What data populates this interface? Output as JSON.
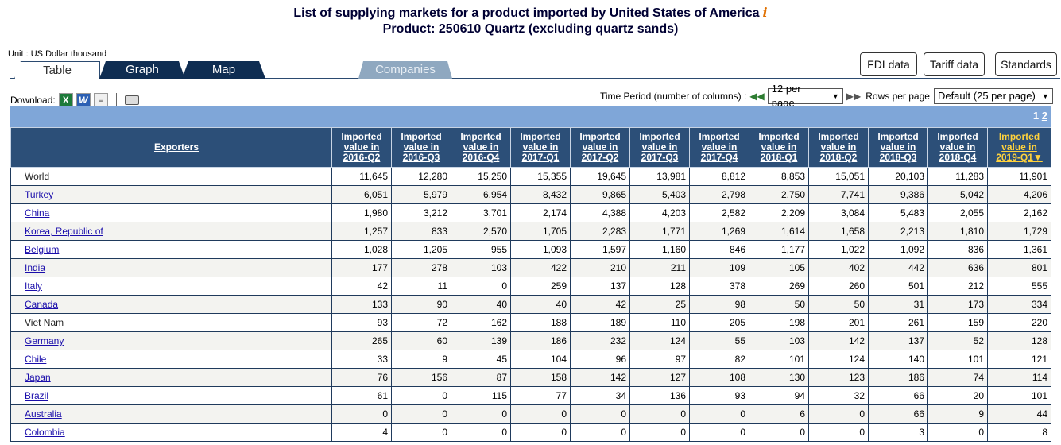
{
  "title": {
    "line1": "List of supplying markets for a product imported by United States of America",
    "info_icon": "i",
    "line2": "Product: 250610 Quartz (excluding quartz sands)"
  },
  "unit": "Unit : US Dollar thousand",
  "tabs": {
    "table": "Table",
    "graph": "Graph",
    "map": "Map",
    "companies": "Companies"
  },
  "top_buttons": {
    "fdi": "FDI data",
    "tariff": "Tariff data",
    "standards": "Standards"
  },
  "download": {
    "label": "Download:",
    "icons": [
      "excel-icon",
      "word-icon",
      "text-file-icon",
      "print-icon"
    ]
  },
  "controls": {
    "time_period_label": "Time Period (number of columns) :",
    "time_period_value": "12 per page",
    "rows_label": "Rows per page",
    "rows_value": "Default (25 per page)"
  },
  "pagination": {
    "current": "1",
    "next": "2"
  },
  "table": {
    "exporters_header": "Exporters",
    "columns": [
      {
        "l1": "Imported",
        "l2": "value in",
        "l3": "2016-Q2"
      },
      {
        "l1": "Imported",
        "l2": "value in",
        "l3": "2016-Q3"
      },
      {
        "l1": "Imported",
        "l2": "value in",
        "l3": "2016-Q4"
      },
      {
        "l1": "Imported",
        "l2": "value in",
        "l3": "2017-Q1"
      },
      {
        "l1": "Imported",
        "l2": "value in",
        "l3": "2017-Q2"
      },
      {
        "l1": "Imported",
        "l2": "value in",
        "l3": "2017-Q3"
      },
      {
        "l1": "Imported",
        "l2": "value in",
        "l3": "2017-Q4"
      },
      {
        "l1": "Imported",
        "l2": "value in",
        "l3": "2018-Q1"
      },
      {
        "l1": "Imported",
        "l2": "value in",
        "l3": "2018-Q2"
      },
      {
        "l1": "Imported",
        "l2": "value in",
        "l3": "2018-Q3"
      },
      {
        "l1": "Imported",
        "l2": "value in",
        "l3": "2018-Q4"
      },
      {
        "l1": "Imported",
        "l2": "value in",
        "l3": "2019-Q1▼"
      }
    ],
    "rows": [
      {
        "name": "World",
        "link": false,
        "values": [
          "11,645",
          "12,280",
          "15,250",
          "15,355",
          "19,645",
          "13,981",
          "8,812",
          "8,853",
          "15,051",
          "20,103",
          "11,283",
          "11,901"
        ]
      },
      {
        "name": "Turkey",
        "link": true,
        "values": [
          "6,051",
          "5,979",
          "6,954",
          "8,432",
          "9,865",
          "5,403",
          "2,798",
          "2,750",
          "7,741",
          "9,386",
          "5,042",
          "4,206"
        ]
      },
      {
        "name": "China",
        "link": true,
        "values": [
          "1,980",
          "3,212",
          "3,701",
          "2,174",
          "4,388",
          "4,203",
          "2,582",
          "2,209",
          "3,084",
          "5,483",
          "2,055",
          "2,162"
        ]
      },
      {
        "name": "Korea, Republic of",
        "link": true,
        "values": [
          "1,257",
          "833",
          "2,570",
          "1,705",
          "2,283",
          "1,771",
          "1,269",
          "1,614",
          "1,658",
          "2,213",
          "1,810",
          "1,729"
        ]
      },
      {
        "name": "Belgium",
        "link": true,
        "values": [
          "1,028",
          "1,205",
          "955",
          "1,093",
          "1,597",
          "1,160",
          "846",
          "1,177",
          "1,022",
          "1,092",
          "836",
          "1,361"
        ]
      },
      {
        "name": "India",
        "link": true,
        "values": [
          "177",
          "278",
          "103",
          "422",
          "210",
          "211",
          "109",
          "105",
          "402",
          "442",
          "636",
          "801"
        ]
      },
      {
        "name": "Italy",
        "link": true,
        "values": [
          "42",
          "11",
          "0",
          "259",
          "137",
          "128",
          "378",
          "269",
          "260",
          "501",
          "212",
          "555"
        ]
      },
      {
        "name": "Canada",
        "link": true,
        "values": [
          "133",
          "90",
          "40",
          "40",
          "42",
          "25",
          "98",
          "50",
          "50",
          "31",
          "173",
          "334"
        ]
      },
      {
        "name": "Viet Nam",
        "link": false,
        "values": [
          "93",
          "72",
          "162",
          "188",
          "189",
          "110",
          "205",
          "198",
          "201",
          "261",
          "159",
          "220"
        ]
      },
      {
        "name": "Germany",
        "link": true,
        "values": [
          "265",
          "60",
          "139",
          "186",
          "232",
          "124",
          "55",
          "103",
          "142",
          "137",
          "52",
          "128"
        ]
      },
      {
        "name": "Chile",
        "link": true,
        "values": [
          "33",
          "9",
          "45",
          "104",
          "96",
          "97",
          "82",
          "101",
          "124",
          "140",
          "101",
          "121"
        ]
      },
      {
        "name": "Japan",
        "link": true,
        "values": [
          "76",
          "156",
          "87",
          "158",
          "142",
          "127",
          "108",
          "130",
          "123",
          "186",
          "74",
          "114"
        ]
      },
      {
        "name": "Brazil",
        "link": true,
        "values": [
          "61",
          "0",
          "115",
          "77",
          "34",
          "136",
          "93",
          "94",
          "32",
          "66",
          "20",
          "101"
        ]
      },
      {
        "name": "Australia",
        "link": true,
        "values": [
          "0",
          "0",
          "0",
          "0",
          "0",
          "0",
          "0",
          "6",
          "0",
          "66",
          "9",
          "44"
        ]
      },
      {
        "name": "Colombia",
        "link": true,
        "values": [
          "4",
          "0",
          "0",
          "0",
          "0",
          "0",
          "0",
          "0",
          "0",
          "3",
          "0",
          "8"
        ]
      }
    ]
  }
}
